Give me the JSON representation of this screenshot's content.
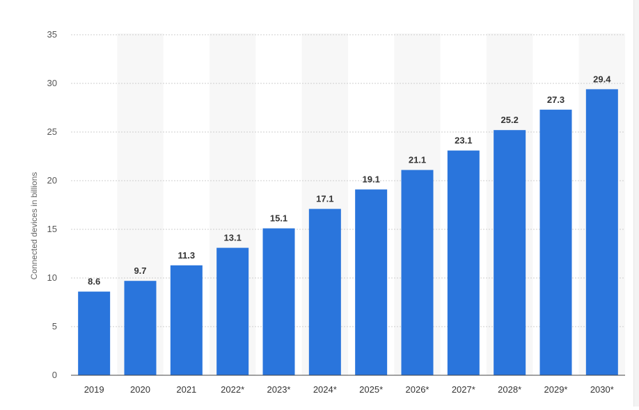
{
  "chart_data": {
    "type": "bar",
    "categories": [
      "2019",
      "2020",
      "2021",
      "2022*",
      "2023*",
      "2024*",
      "2025*",
      "2026*",
      "2027*",
      "2028*",
      "2029*",
      "2030*"
    ],
    "values": [
      8.6,
      9.7,
      11.3,
      13.1,
      15.1,
      17.1,
      19.1,
      21.1,
      23.1,
      25.2,
      27.3,
      29.4
    ],
    "value_labels": [
      "8.6",
      "9.7",
      "11.3",
      "13.1",
      "15.1",
      "17.1",
      "19.1",
      "21.1",
      "23.1",
      "25.2",
      "27.3",
      "29.4"
    ],
    "y_ticks": [
      0,
      5,
      10,
      15,
      20,
      25,
      30,
      35
    ],
    "y_tick_labels": [
      "0",
      "5",
      "10",
      "15",
      "20",
      "25",
      "30",
      "35"
    ],
    "ylim": [
      0,
      35
    ],
    "ylabel": "Connected devices in billions",
    "xlabel": "",
    "grid": true,
    "bar_color": "#2a75dc",
    "band_color": "#f7f7f7",
    "grid_color": "#cccccc"
  }
}
